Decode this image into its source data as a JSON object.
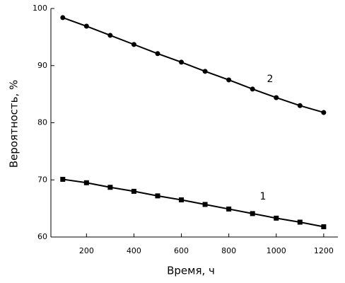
{
  "chart_data": {
    "type": "line",
    "x": [
      100,
      200,
      300,
      400,
      500,
      600,
      700,
      800,
      900,
      1000,
      1100,
      1200
    ],
    "series": [
      {
        "name": "1",
        "color": "#000000",
        "marker": "square",
        "values": [
          70.1,
          69.5,
          68.7,
          68.0,
          67.2,
          66.5,
          65.7,
          64.9,
          64.1,
          63.3,
          62.6,
          61.8
        ]
      },
      {
        "name": "2",
        "color": "#000000",
        "marker": "circle",
        "values": [
          98.4,
          96.9,
          95.3,
          93.7,
          92.1,
          90.6,
          89.0,
          87.5,
          85.9,
          84.4,
          83.0,
          81.8
        ]
      }
    ],
    "x_label": "Время, ч",
    "y_label": "Вероятность, %",
    "xlim": [
      50,
      1260
    ],
    "ylim": [
      60,
      100
    ],
    "xticks": [
      200,
      400,
      600,
      800,
      1000,
      1200
    ],
    "yticks": [
      60,
      70,
      80,
      90,
      100
    ],
    "grid": false
  }
}
